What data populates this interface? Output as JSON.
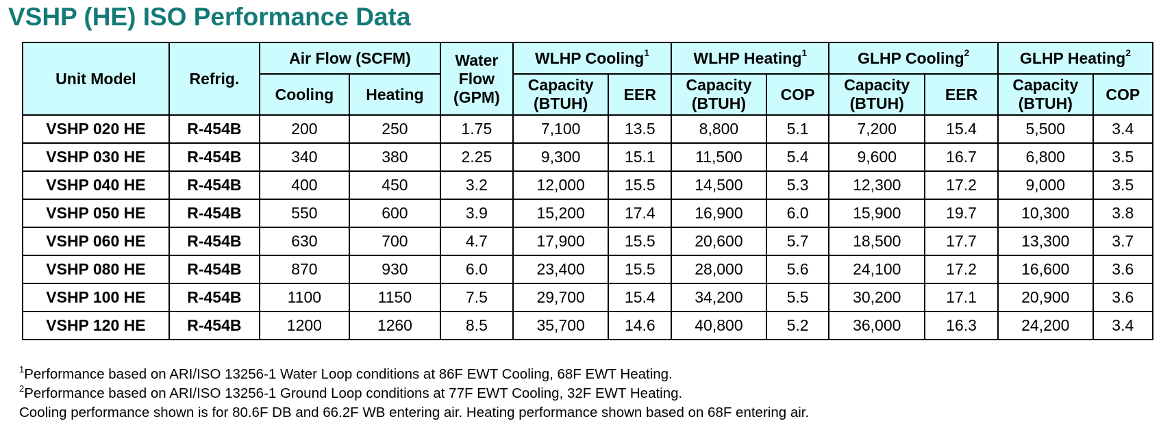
{
  "title": "VSHP (HE) ISO Performance Data",
  "headers": {
    "unit_model": "Unit Model",
    "refrig": "Refrig.",
    "air_flow": "Air Flow (SCFM)",
    "water_flow_line1": "Water",
    "water_flow_line2": "Flow",
    "water_flow_line3": "(GPM)",
    "wlhp_cooling": "WLHP Cooling",
    "wlhp_cooling_sup": "1",
    "wlhp_heating": "WLHP Heating",
    "wlhp_heating_sup": "1",
    "glhp_cooling": "GLHP Cooling",
    "glhp_cooling_sup": "2",
    "glhp_heating": "GLHP Heating",
    "glhp_heating_sup": "2",
    "cooling": "Cooling",
    "heating": "Heating",
    "capacity_line1": "Capacity",
    "capacity_line2": "(BTUH)",
    "eer": "EER",
    "cop": "COP"
  },
  "rows": [
    {
      "model": "VSHP 020 HE",
      "refrig": "R-454B",
      "air_cool": "200",
      "air_heat": "250",
      "water": "1.75",
      "wl_cool_cap": "7,100",
      "wl_eer": "13.5",
      "wl_heat_cap": "8,800",
      "wl_cop": "5.1",
      "gl_cool_cap": "7,200",
      "gl_eer": "15.4",
      "gl_heat_cap": "5,500",
      "gl_cop": "3.4"
    },
    {
      "model": "VSHP 030 HE",
      "refrig": "R-454B",
      "air_cool": "340",
      "air_heat": "380",
      "water": "2.25",
      "wl_cool_cap": "9,300",
      "wl_eer": "15.1",
      "wl_heat_cap": "11,500",
      "wl_cop": "5.4",
      "gl_cool_cap": "9,600",
      "gl_eer": "16.7",
      "gl_heat_cap": "6,800",
      "gl_cop": "3.5"
    },
    {
      "model": "VSHP 040 HE",
      "refrig": "R-454B",
      "air_cool": "400",
      "air_heat": "450",
      "water": "3.2",
      "wl_cool_cap": "12,000",
      "wl_eer": "15.5",
      "wl_heat_cap": "14,500",
      "wl_cop": "5.3",
      "gl_cool_cap": "12,300",
      "gl_eer": "17.2",
      "gl_heat_cap": "9,000",
      "gl_cop": "3.5"
    },
    {
      "model": "VSHP 050 HE",
      "refrig": "R-454B",
      "air_cool": "550",
      "air_heat": "600",
      "water": "3.9",
      "wl_cool_cap": "15,200",
      "wl_eer": "17.4",
      "wl_heat_cap": "16,900",
      "wl_cop": "6.0",
      "gl_cool_cap": "15,900",
      "gl_eer": "19.7",
      "gl_heat_cap": "10,300",
      "gl_cop": "3.8"
    },
    {
      "model": "VSHP 060 HE",
      "refrig": "R-454B",
      "air_cool": "630",
      "air_heat": "700",
      "water": "4.7",
      "wl_cool_cap": "17,900",
      "wl_eer": "15.5",
      "wl_heat_cap": "20,600",
      "wl_cop": "5.7",
      "gl_cool_cap": "18,500",
      "gl_eer": "17.7",
      "gl_heat_cap": "13,300",
      "gl_cop": "3.7"
    },
    {
      "model": "VSHP 080 HE",
      "refrig": "R-454B",
      "air_cool": "870",
      "air_heat": "930",
      "water": "6.0",
      "wl_cool_cap": "23,400",
      "wl_eer": "15.5",
      "wl_heat_cap": "28,000",
      "wl_cop": "5.6",
      "gl_cool_cap": "24,100",
      "gl_eer": "17.2",
      "gl_heat_cap": "16,600",
      "gl_cop": "3.6"
    },
    {
      "model": "VSHP 100 HE",
      "refrig": "R-454B",
      "air_cool": "1100",
      "air_heat": "1150",
      "water": "7.5",
      "wl_cool_cap": "29,700",
      "wl_eer": "15.4",
      "wl_heat_cap": "34,200",
      "wl_cop": "5.5",
      "gl_cool_cap": "30,200",
      "gl_eer": "17.1",
      "gl_heat_cap": "20,900",
      "gl_cop": "3.6"
    },
    {
      "model": "VSHP 120 HE",
      "refrig": "R-454B",
      "air_cool": "1200",
      "air_heat": "1260",
      "water": "8.5",
      "wl_cool_cap": "35,700",
      "wl_eer": "14.6",
      "wl_heat_cap": "40,800",
      "wl_cop": "5.2",
      "gl_cool_cap": "36,000",
      "gl_eer": "16.3",
      "gl_heat_cap": "24,200",
      "gl_cop": "3.4"
    }
  ],
  "notes": [
    {
      "sup": "1",
      "text": "Performance based on ARI/ISO 13256-1 Water Loop conditions at 86F EWT Cooling, 68F EWT Heating."
    },
    {
      "sup": "2",
      "text": "Performance based on ARI/ISO 13256-1 Ground Loop conditions at 77F EWT Cooling, 32F EWT Heating."
    },
    {
      "sup": "",
      "text": "Cooling performance shown is for 80.6F DB and 66.2F WB entering air. Heating performance shown based on 68F entering air."
    }
  ],
  "colors": {
    "title": "#137a77",
    "header_bg": "#ccfcfe",
    "border": "#000000"
  }
}
